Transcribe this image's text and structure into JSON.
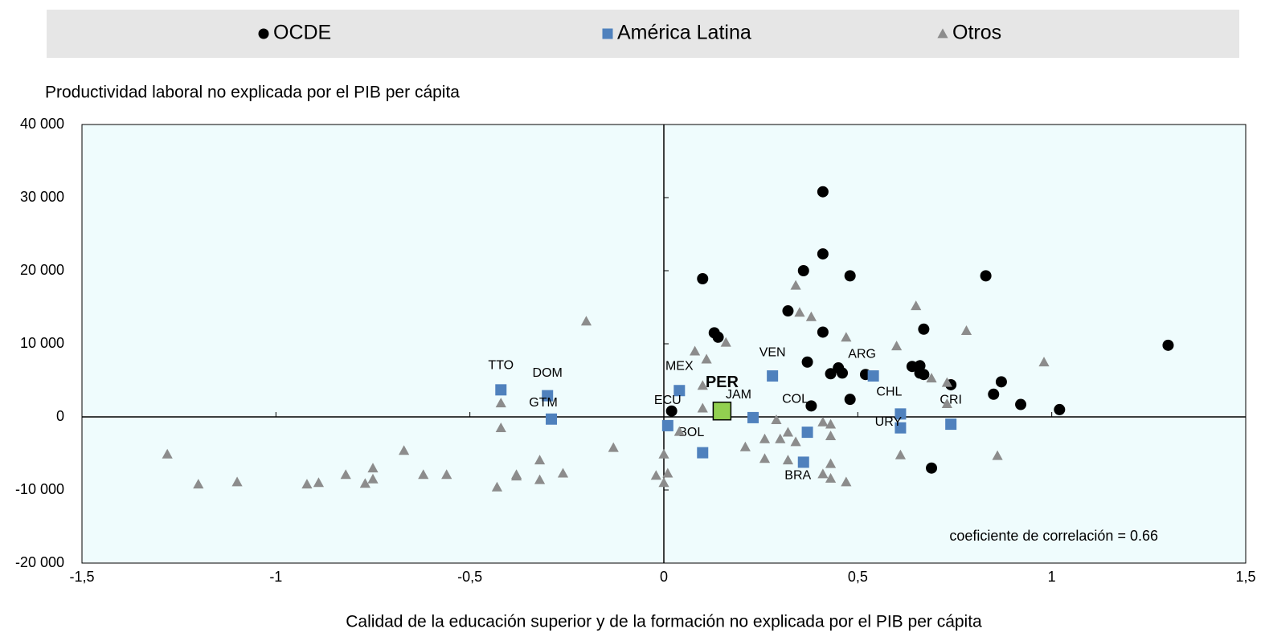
{
  "chart_data": {
    "type": "scatter",
    "y_label": "Productividad laboral no explicada por el PIB per cápita",
    "x_label": "Calidad de la educación superior y de la formación no explicada por el PIB per cápita",
    "annotation": "coeficiente de correlación = 0.66",
    "xlim": [
      -1.5,
      1.5
    ],
    "xticks": [
      {
        "value": -1.5,
        "label": "-1,5"
      },
      -1,
      {
        "value": -0.5,
        "label": "-0,5"
      },
      0,
      {
        "value": 0.5,
        "label": "0,5"
      },
      1,
      {
        "value": 1.5,
        "label": "1,5"
      }
    ],
    "ylim": [
      -20000,
      40000
    ],
    "yticks": [
      {
        "value": -20000,
        "label": "-20 000"
      },
      {
        "value": -10000,
        "label": "-10 000"
      },
      0,
      {
        "value": 10000,
        "label": "10 000"
      },
      {
        "value": 20000,
        "label": "20 000"
      },
      {
        "value": 30000,
        "label": "30 000"
      },
      {
        "value": 40000,
        "label": "40 000"
      }
    ],
    "background": "#effcfd",
    "highlight": "PER",
    "highlight_color": "#92d050",
    "series": [
      {
        "name": "OCDE",
        "color": "#000000",
        "marker": "circle",
        "x": [
          0.41,
          0.41,
          0.36,
          0.48,
          0.1,
          0.83,
          0.32,
          0.13,
          0.14,
          0.41,
          0.67,
          0.37,
          0.43,
          0.45,
          0.46,
          0.52,
          0.64,
          0.66,
          0.66,
          0.67,
          0.74,
          0.87,
          1.3,
          0.85,
          0.92,
          1.02,
          0.48,
          0.38,
          0.02,
          0.69
        ],
        "values": [
          30800,
          22300,
          20000,
          19300,
          18900,
          19300,
          14500,
          11500,
          10900,
          11600,
          12000,
          7500,
          5900,
          6700,
          6000,
          5800,
          6900,
          7000,
          6000,
          5800,
          4400,
          4800,
          9800,
          3100,
          1700,
          1000,
          2400,
          1500,
          800,
          -7000
        ]
      },
      {
        "name": "América Latina",
        "color": "#4f81bd",
        "marker": "square",
        "labels": [
          "TTO",
          "DOM",
          "GTM",
          "MEX",
          "ECU",
          "BOL",
          "PER",
          "JAM",
          "VEN",
          "COL",
          "BRA",
          "ARG",
          "CHL",
          "URY",
          "CRI"
        ],
        "x": [
          -0.42,
          -0.3,
          -0.29,
          0.04,
          0.01,
          0.1,
          0.15,
          0.23,
          0.28,
          0.37,
          0.36,
          0.54,
          0.61,
          0.61,
          0.74
        ],
        "values": [
          3700,
          2900,
          -300,
          3600,
          -1200,
          -4900,
          800,
          -100,
          5600,
          -2100,
          -6200,
          5600,
          400,
          -1500,
          -1000
        ]
      },
      {
        "name": "Otros",
        "color": "#8c8c8c",
        "marker": "triangle",
        "x": [
          -1.28,
          -1.2,
          -1.1,
          -0.92,
          -0.89,
          -0.82,
          -0.77,
          -0.75,
          -0.75,
          -0.67,
          -0.62,
          -0.56,
          -0.43,
          -0.42,
          -0.42,
          -0.38,
          -0.38,
          -0.32,
          -0.32,
          -0.26,
          -0.2,
          -0.13,
          -0.02,
          0.0,
          0.01,
          0.0,
          0.04,
          0.08,
          0.11,
          0.1,
          0.1,
          0.16,
          0.21,
          0.26,
          0.26,
          0.29,
          0.3,
          0.32,
          0.32,
          0.34,
          0.34,
          0.35,
          0.38,
          0.41,
          0.43,
          0.41,
          0.43,
          0.43,
          0.43,
          0.47,
          0.47,
          0.6,
          0.61,
          0.65,
          0.69,
          0.73,
          0.73,
          0.78,
          0.86,
          0.98
        ],
        "values": [
          -5100,
          -9200,
          -8900,
          -9200,
          -9000,
          -7900,
          -9100,
          -7000,
          -8500,
          -4600,
          -7900,
          -7900,
          -9600,
          -1500,
          1900,
          -8100,
          -7900,
          -5900,
          -8600,
          -7700,
          13100,
          -4200,
          -8000,
          -5100,
          -7700,
          -9000,
          -2000,
          9000,
          7900,
          4300,
          1200,
          10200,
          -4100,
          -3000,
          -5700,
          -400,
          -3000,
          -2100,
          -5900,
          -3400,
          18000,
          14300,
          13700,
          -7800,
          -8400,
          -700,
          -1000,
          -2600,
          -6400,
          10900,
          -8900,
          9700,
          -5200,
          15200,
          5300,
          1800,
          4700,
          11800,
          -5300,
          7500
        ]
      }
    ]
  }
}
